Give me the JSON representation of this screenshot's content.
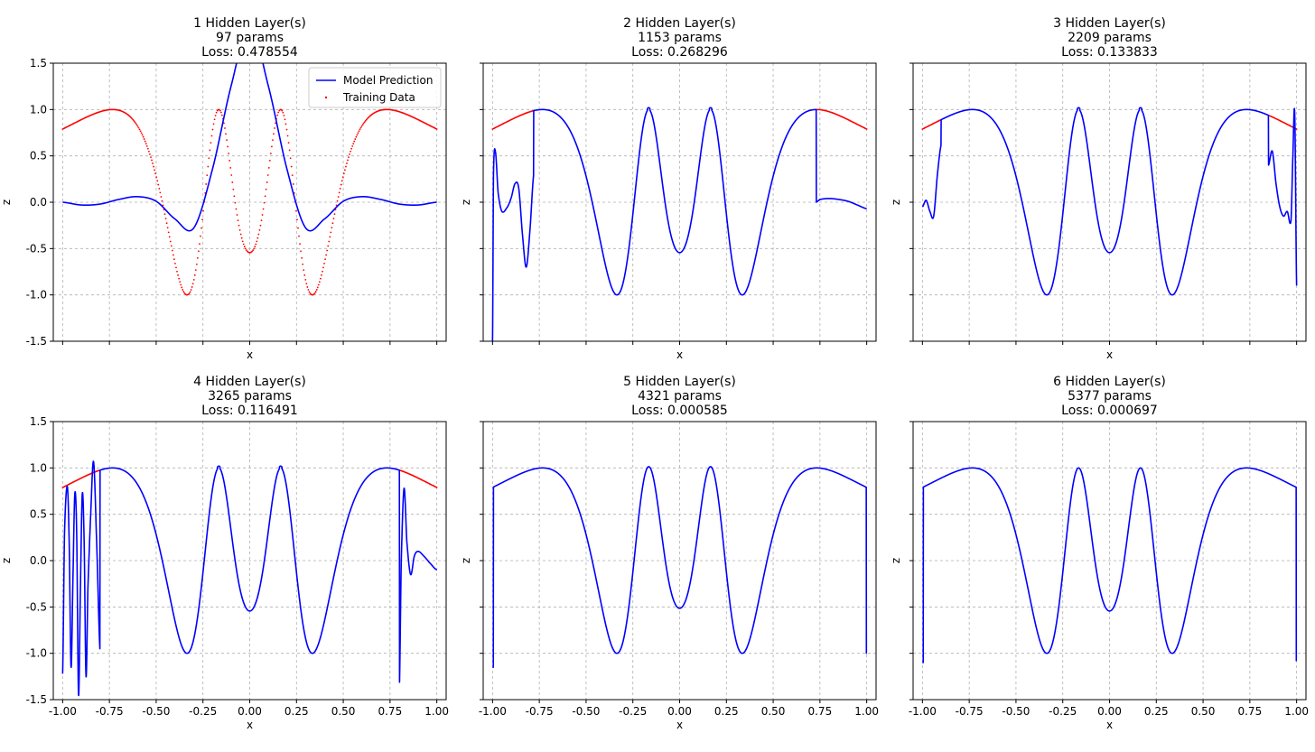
{
  "figure": {
    "legend": {
      "model_label": "Model Prediction",
      "data_label": "Training Data",
      "placement": "upper right of first panel"
    },
    "colors": {
      "model": "#0000ff",
      "data": "#ff0000",
      "grid": "#b0b0b0",
      "axes": "#000000"
    }
  },
  "target_function": "z = sin(1 / (0.1 + x^2)) sampled on [-1, 1]",
  "chart_data": [
    {
      "type": "line",
      "title": [
        "1 Hidden Layer(s)",
        "97 params",
        "Loss: 0.478554"
      ],
      "xlabel": "x",
      "ylabel": "z",
      "xlim": [
        -1.05,
        1.05
      ],
      "ylim": [
        -1.5,
        1.5
      ],
      "xticks": [
        "-1.00",
        "-0.75",
        "-0.50",
        "-0.25",
        "0.00",
        "0.25",
        "0.50",
        "0.75",
        "1.00"
      ],
      "yticks": [
        "-1.5",
        "-1.0",
        "-0.5",
        "0.0",
        "0.5",
        "1.0",
        "1.5"
      ],
      "show_x_tick_labels": false,
      "show_y_tick_labels": true,
      "legend": true,
      "grid": true,
      "training_points_visible": true,
      "data_visible_intervals": [
        [
          -1.0,
          1.0
        ]
      ],
      "model": {
        "mode": "poly",
        "x": [
          -1.0,
          -0.9,
          -0.8,
          -0.7,
          -0.6,
          -0.5,
          -0.4,
          -0.3,
          -0.2,
          -0.1,
          0.0,
          0.1,
          0.2,
          0.3,
          0.4,
          0.5,
          0.6,
          0.7,
          0.8,
          0.9,
          1.0
        ],
        "y": [
          0.0,
          -0.03,
          -0.02,
          0.03,
          0.06,
          0.01,
          -0.18,
          -0.28,
          0.35,
          1.25,
          1.9,
          1.25,
          0.35,
          -0.28,
          -0.18,
          0.01,
          0.06,
          0.03,
          -0.02,
          -0.03,
          0.0
        ]
      }
    },
    {
      "type": "line",
      "title": [
        "2 Hidden Layer(s)",
        "1153 params",
        "Loss: 0.268296"
      ],
      "xlabel": "x",
      "ylabel": "z",
      "xlim": [
        -1.05,
        1.05
      ],
      "ylim": [
        -1.5,
        1.5
      ],
      "xticks": [
        "-1.00",
        "-0.75",
        "-0.50",
        "-0.25",
        "0.00",
        "0.25",
        "0.50",
        "0.75",
        "1.00"
      ],
      "yticks": [
        "-1.5",
        "-1.0",
        "-0.5",
        "0.0",
        "0.5",
        "1.0",
        "1.5"
      ],
      "show_x_tick_labels": false,
      "show_y_tick_labels": false,
      "legend": false,
      "grid": true,
      "training_points_visible": true,
      "data_visible_intervals": [
        [
          -1.0,
          -0.78
        ],
        [
          0.73,
          1.0
        ]
      ],
      "model": {
        "mode": "hybrid",
        "fit_interval": [
          -0.78,
          0.73
        ],
        "x": [
          -1.0,
          -0.995,
          -0.985,
          -0.97,
          -0.95,
          -0.92,
          -0.9,
          -0.88,
          -0.86,
          -0.84,
          -0.82,
          -0.8,
          -0.78,
          0.73,
          0.75,
          0.8,
          0.85,
          0.9,
          0.95,
          1.0
        ],
        "y": [
          -1.5,
          0.3,
          0.55,
          0.1,
          -0.1,
          -0.05,
          0.05,
          0.2,
          0.15,
          -0.35,
          -0.7,
          -0.3,
          0.3,
          0.0,
          0.03,
          0.04,
          0.03,
          0.01,
          -0.03,
          -0.07
        ]
      }
    },
    {
      "type": "line",
      "title": [
        "3 Hidden Layer(s)",
        "2209 params",
        "Loss: 0.133833"
      ],
      "xlabel": "x",
      "ylabel": "z",
      "xlim": [
        -1.05,
        1.05
      ],
      "ylim": [
        -1.5,
        1.5
      ],
      "xticks": [
        "-1.00",
        "-0.75",
        "-0.50",
        "-0.25",
        "0.00",
        "0.25",
        "0.50",
        "0.75",
        "1.00"
      ],
      "yticks": [
        "-1.5",
        "-1.0",
        "-0.5",
        "0.0",
        "0.5",
        "1.0",
        "1.5"
      ],
      "show_x_tick_labels": false,
      "show_y_tick_labels": false,
      "legend": false,
      "grid": true,
      "training_points_visible": true,
      "data_visible_intervals": [
        [
          -1.0,
          -0.9
        ],
        [
          0.85,
          1.0
        ]
      ],
      "model": {
        "mode": "hybrid",
        "fit_interval": [
          -0.9,
          0.85
        ],
        "x": [
          -1.0,
          -0.98,
          -0.96,
          -0.94,
          -0.92,
          -0.9,
          0.85,
          0.87,
          0.89,
          0.91,
          0.93,
          0.95,
          0.97,
          0.98,
          0.99,
          1.0
        ],
        "y": [
          -0.05,
          0.02,
          -0.1,
          -0.15,
          0.3,
          0.62,
          0.4,
          0.55,
          0.2,
          -0.05,
          -0.15,
          -0.1,
          -0.2,
          0.5,
          0.95,
          -0.9
        ]
      }
    },
    {
      "type": "line",
      "title": [
        "4 Hidden Layer(s)",
        "3265 params",
        "Loss: 0.116491"
      ],
      "xlabel": "x",
      "ylabel": "z",
      "xlim": [
        -1.05,
        1.05
      ],
      "ylim": [
        -1.5,
        1.5
      ],
      "xticks": [
        "-1.00",
        "-0.75",
        "-0.50",
        "-0.25",
        "0.00",
        "0.25",
        "0.50",
        "0.75",
        "1.00"
      ],
      "yticks": [
        "-1.5",
        "-1.0",
        "-0.5",
        "0.0",
        "0.5",
        "1.0",
        "1.5"
      ],
      "show_x_tick_labels": true,
      "show_y_tick_labels": true,
      "legend": false,
      "grid": true,
      "training_points_visible": true,
      "data_visible_intervals": [
        [
          -1.0,
          -0.8
        ],
        [
          0.8,
          1.0
        ]
      ],
      "model": {
        "mode": "hybrid",
        "fit_interval": [
          -0.8,
          0.8
        ],
        "x": [
          -1.0,
          -0.99,
          -0.975,
          -0.965,
          -0.955,
          -0.945,
          -0.935,
          -0.925,
          -0.915,
          -0.905,
          -0.895,
          -0.885,
          -0.875,
          -0.865,
          -0.85,
          -0.835,
          -0.82,
          -0.8,
          0.8,
          0.81,
          0.825,
          0.84,
          0.86,
          0.88,
          0.9,
          0.93,
          0.96,
          1.0
        ],
        "y": [
          -1.22,
          0.3,
          0.8,
          0.2,
          -1.15,
          -0.2,
          0.72,
          0.3,
          -1.45,
          -0.3,
          0.72,
          0.2,
          -1.25,
          -0.3,
          0.5,
          1.07,
          0.3,
          -0.98,
          -1.38,
          0.0,
          0.78,
          0.2,
          -0.15,
          0.05,
          0.1,
          0.05,
          -0.02,
          -0.1
        ]
      }
    },
    {
      "type": "line",
      "title": [
        "5 Hidden Layer(s)",
        "4321 params",
        "Loss: 0.000585"
      ],
      "xlabel": "x",
      "ylabel": "z",
      "xlim": [
        -1.05,
        1.05
      ],
      "ylim": [
        -1.5,
        1.5
      ],
      "xticks": [
        "-1.00",
        "-0.75",
        "-0.50",
        "-0.25",
        "0.00",
        "0.25",
        "0.50",
        "0.75",
        "1.00"
      ],
      "yticks": [
        "-1.5",
        "-1.0",
        "-0.5",
        "0.0",
        "0.5",
        "1.0",
        "1.5"
      ],
      "show_x_tick_labels": true,
      "show_y_tick_labels": false,
      "legend": false,
      "grid": true,
      "training_points_visible": false,
      "data_visible_intervals": [],
      "model": {
        "mode": "target",
        "endpoint_left": -1.15,
        "endpoint_right": -1.0,
        "peak_offset": 0.03
      }
    },
    {
      "type": "line",
      "title": [
        "6 Hidden Layer(s)",
        "5377 params",
        "Loss: 0.000697"
      ],
      "xlabel": "x",
      "ylabel": "z",
      "xlim": [
        -1.05,
        1.05
      ],
      "ylim": [
        -1.5,
        1.5
      ],
      "xticks": [
        "-1.00",
        "-0.75",
        "-0.50",
        "-0.25",
        "0.00",
        "0.25",
        "0.50",
        "0.75",
        "1.00"
      ],
      "yticks": [
        "-1.5",
        "-1.0",
        "-0.5",
        "0.0",
        "0.5",
        "1.0",
        "1.5"
      ],
      "show_x_tick_labels": true,
      "show_y_tick_labels": false,
      "legend": false,
      "grid": true,
      "training_points_visible": false,
      "data_visible_intervals": [],
      "model": {
        "mode": "target",
        "endpoint_left": -1.1,
        "endpoint_right": -1.08,
        "peak_offset": 0.0,
        "edge_overshoot": 1.1
      }
    }
  ]
}
